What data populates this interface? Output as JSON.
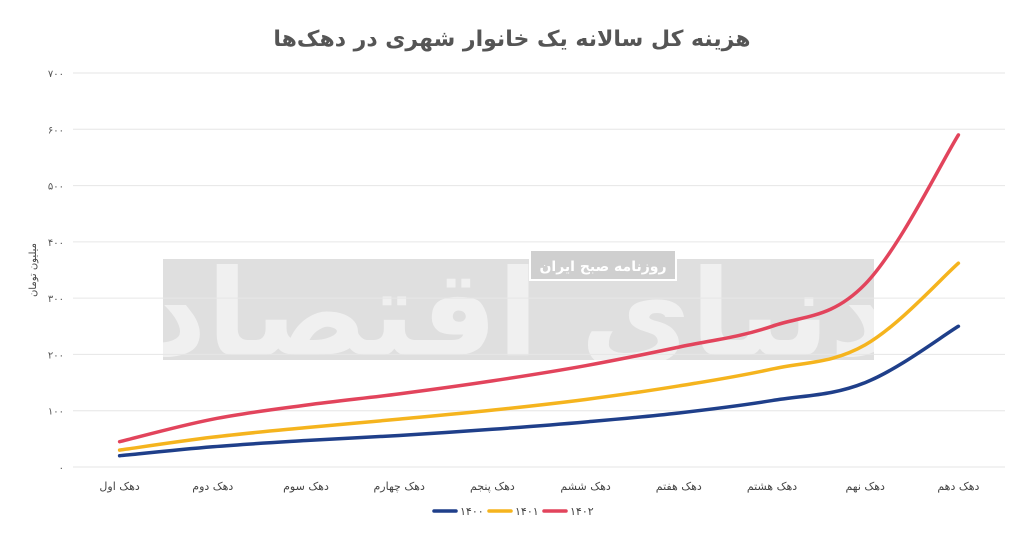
{
  "chart_data": {
    "type": "line",
    "title": "هزینه کل سالانه یک خانوار شهری در دهک‌ها",
    "ylabel": "میلیون تومان",
    "xlabel": "",
    "ylim": [
      0,
      700
    ],
    "yticks": [
      0,
      100,
      200,
      300,
      400,
      500,
      600,
      700
    ],
    "ytick_labels": [
      "۰",
      "۱۰۰",
      "۲۰۰",
      "۳۰۰",
      "۴۰۰",
      "۵۰۰",
      "۶۰۰",
      "۷۰۰"
    ],
    "grid": true,
    "legend_position": "bottom",
    "categories": [
      "دهک اول",
      "دهک دوم",
      "دهک سوم",
      "دهک چهارم",
      "دهک پنجم",
      "دهک ششم",
      "دهک هفتم",
      "دهک هشتم",
      "دهک نهم",
      "دهک دهم"
    ],
    "series": [
      {
        "name": "۱۴۰۰",
        "color": "#1f3f8a",
        "values": [
          20,
          36,
          47,
          56,
          67,
          80,
          96,
          118,
          150,
          250
        ]
      },
      {
        "name": "۱۴۰۱",
        "color": "#f5b41e",
        "values": [
          30,
          53,
          70,
          85,
          101,
          120,
          144,
          174,
          217,
          362
        ]
      },
      {
        "name": "۱۴۰۲",
        "color": "#e2445c",
        "values": [
          45,
          85,
          110,
          130,
          153,
          180,
          213,
          250,
          325,
          590
        ]
      }
    ]
  },
  "watermark": {
    "logo_text": "دنیای اقتصاد",
    "subtitle": "روزنامه صبح ایران"
  }
}
